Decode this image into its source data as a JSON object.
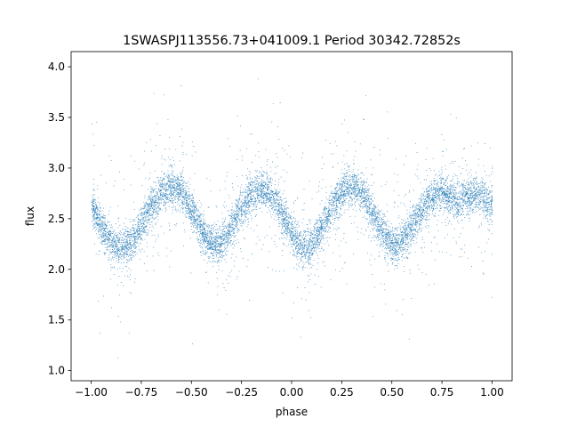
{
  "chart_data": {
    "type": "scatter",
    "title": "1SWASPJ113556.73+041009.1 Period 30342.72852s",
    "xlabel": "phase",
    "ylabel": "flux",
    "xlim": [
      -1.1,
      1.1
    ],
    "ylim": [
      0.9,
      4.15
    ],
    "x_ticks": [
      -1.0,
      -0.75,
      -0.5,
      -0.25,
      0.0,
      0.25,
      0.5,
      0.75,
      1.0
    ],
    "x_tick_labels": [
      "−1.00",
      "−0.75",
      "−0.50",
      "−0.25",
      "0.00",
      "0.25",
      "0.50",
      "0.75",
      "1.00"
    ],
    "y_ticks": [
      1.0,
      1.5,
      2.0,
      2.5,
      3.0,
      3.5,
      4.0
    ],
    "y_tick_labels": [
      "1.0",
      "1.5",
      "2.0",
      "2.5",
      "3.0",
      "3.5",
      "4.0"
    ],
    "grid": false,
    "point_color": "#1f77b4",
    "series": [
      {
        "x": [
          -1.0,
          -0.975,
          -0.95,
          -0.925,
          -0.9,
          -0.875,
          -0.85,
          -0.825,
          -0.8,
          -0.775,
          -0.75,
          -0.725,
          -0.7,
          -0.675,
          -0.65,
          -0.625,
          -0.6,
          -0.575,
          -0.55,
          -0.525,
          -0.5,
          -0.475,
          -0.45,
          -0.425,
          -0.4,
          -0.375,
          -0.35,
          -0.325,
          -0.3,
          -0.275,
          -0.25,
          -0.225,
          -0.2,
          -0.175,
          -0.15,
          -0.125,
          -0.1,
          -0.075,
          -0.05,
          -0.025,
          0.0,
          0.025,
          0.05,
          0.075,
          0.1,
          0.125,
          0.15,
          0.175,
          0.2,
          0.225,
          0.25,
          0.275,
          0.3,
          0.325,
          0.35,
          0.375,
          0.4,
          0.425,
          0.45,
          0.475,
          0.5,
          0.525,
          0.55,
          0.575,
          0.6,
          0.625,
          0.65,
          0.675,
          0.7,
          0.725,
          0.75,
          0.775,
          0.8,
          0.825,
          0.85,
          0.875,
          0.9,
          0.925,
          0.95,
          0.975,
          1.0
        ],
        "y": [
          2.62,
          2.52,
          2.42,
          2.33,
          2.26,
          2.22,
          2.22,
          2.23,
          2.27,
          2.36,
          2.45,
          2.55,
          2.63,
          2.7,
          2.76,
          2.8,
          2.82,
          2.8,
          2.76,
          2.68,
          2.58,
          2.48,
          2.38,
          2.3,
          2.24,
          2.23,
          2.26,
          2.33,
          2.42,
          2.52,
          2.6,
          2.67,
          2.73,
          2.77,
          2.78,
          2.76,
          2.71,
          2.64,
          2.55,
          2.45,
          2.35,
          2.27,
          2.22,
          2.21,
          2.24,
          2.32,
          2.42,
          2.52,
          2.62,
          2.7,
          2.77,
          2.81,
          2.82,
          2.79,
          2.74,
          2.66,
          2.56,
          2.46,
          2.37,
          2.3,
          2.25,
          2.24,
          2.27,
          2.34,
          2.43,
          2.52,
          2.6,
          2.67,
          2.72,
          2.75,
          2.76,
          2.74,
          2.7,
          2.68,
          2.7,
          2.72,
          2.74,
          2.73,
          2.7,
          2.66,
          2.62
        ]
      }
    ]
  }
}
